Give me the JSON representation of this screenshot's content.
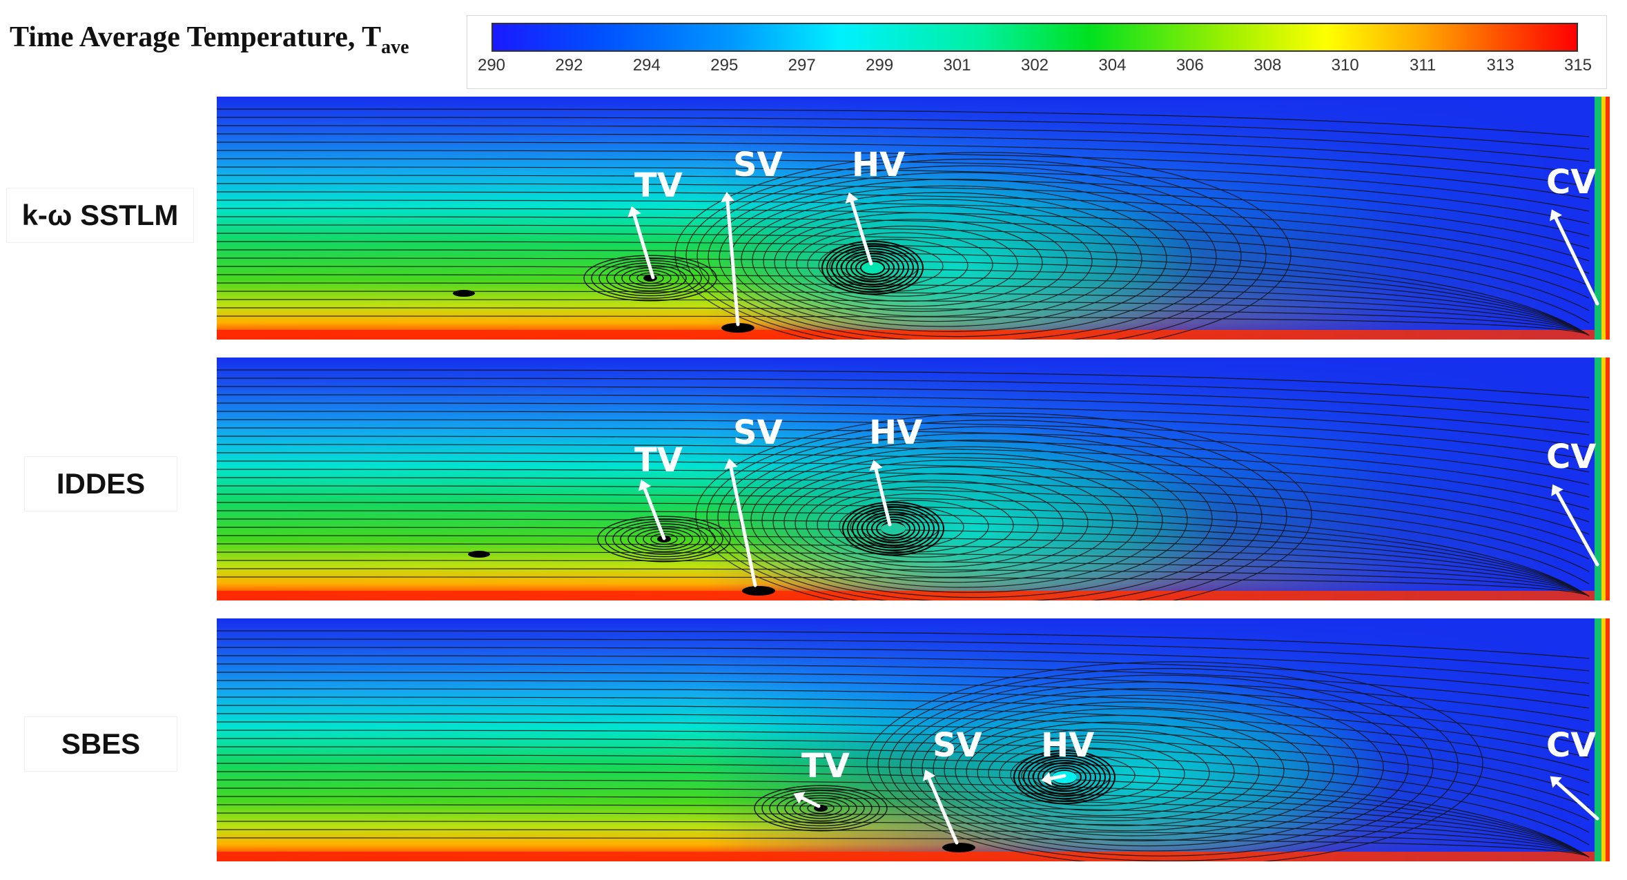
{
  "colorbar": {
    "title": "Time Average Temperature, T",
    "title_subscript": "ave",
    "ticks": [
      "290",
      "292",
      "294",
      "295",
      "297",
      "299",
      "301",
      "302",
      "304",
      "306",
      "308",
      "310",
      "311",
      "313",
      "315"
    ],
    "colors": [
      "#1a1aff",
      "#0050ff",
      "#0098ff",
      "#00f0ff",
      "#00f0a0",
      "#00e020",
      "#a0f000",
      "#ffff00",
      "#ffb000",
      "#ff5000",
      "#ff0000"
    ]
  },
  "panels": [
    {
      "label": "k-ω SSTLM",
      "vortices": [
        {
          "name": "TV",
          "text": "TV"
        },
        {
          "name": "SV",
          "text": "SV"
        },
        {
          "name": "HV",
          "text": "HV"
        },
        {
          "name": "CV",
          "text": "CV"
        }
      ]
    },
    {
      "label": "IDDES",
      "vortices": [
        {
          "name": "TV",
          "text": "TV"
        },
        {
          "name": "SV",
          "text": "SV"
        },
        {
          "name": "HV",
          "text": "HV"
        },
        {
          "name": "CV",
          "text": "CV"
        }
      ]
    },
    {
      "label": "SBES",
      "vortices": [
        {
          "name": "TV",
          "text": "TV"
        },
        {
          "name": "SV",
          "text": "SV"
        },
        {
          "name": "HV",
          "text": "HV"
        },
        {
          "name": "CV",
          "text": "CV"
        }
      ]
    }
  ]
}
